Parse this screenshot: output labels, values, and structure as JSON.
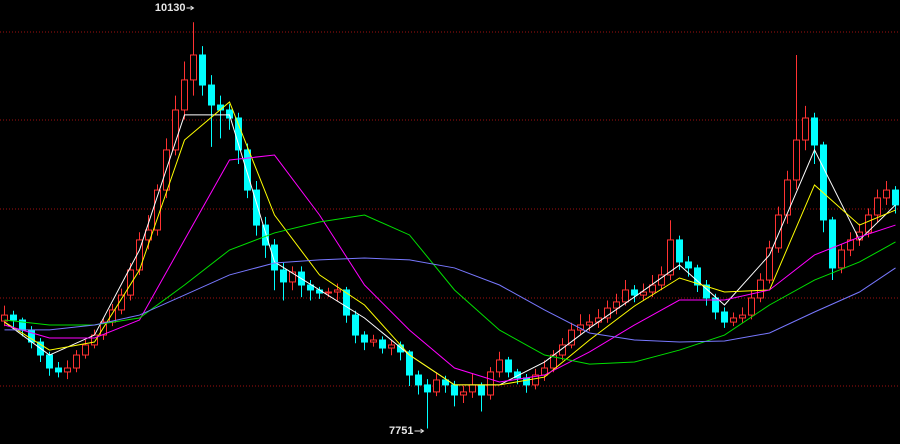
{
  "chart_data": {
    "type": "candlestick",
    "ylim": [
      7660,
      10260
    ],
    "up_color": "#ff3232",
    "down_color": "#00ffff",
    "ohlc": [
      [
        8380,
        8470,
        8350,
        8415
      ],
      [
        8415,
        8440,
        8340,
        8386
      ],
      [
        8386,
        8400,
        8290,
        8327
      ],
      [
        8327,
        8350,
        8220,
        8257
      ],
      [
        8257,
        8280,
        8140,
        8181
      ],
      [
        8181,
        8200,
        8060,
        8105
      ],
      [
        8105,
        8140,
        8050,
        8082
      ],
      [
        8082,
        8150,
        8040,
        8105
      ],
      [
        8105,
        8210,
        8080,
        8181
      ],
      [
        8181,
        8270,
        8160,
        8240
      ],
      [
        8240,
        8330,
        8220,
        8298
      ],
      [
        8298,
        8400,
        8270,
        8374
      ],
      [
        8374,
        8480,
        8350,
        8445
      ],
      [
        8445,
        8570,
        8420,
        8532
      ],
      [
        8532,
        8720,
        8500,
        8679
      ],
      [
        8679,
        8900,
        8650,
        8855
      ],
      [
        8855,
        9000,
        8800,
        8913
      ],
      [
        8913,
        9180,
        8880,
        9147
      ],
      [
        9147,
        9450,
        9100,
        9382
      ],
      [
        9382,
        9700,
        9350,
        9616
      ],
      [
        9616,
        9900,
        9560,
        9792
      ],
      [
        9792,
        10130,
        9700,
        9938
      ],
      [
        9938,
        9990,
        9700,
        9762
      ],
      [
        9762,
        9820,
        9400,
        9645
      ],
      [
        9645,
        9700,
        9450,
        9616
      ],
      [
        9616,
        9650,
        9500,
        9569
      ],
      [
        9569,
        9600,
        9300,
        9382
      ],
      [
        9382,
        9420,
        9100,
        9147
      ],
      [
        9147,
        9200,
        8880,
        8942
      ],
      [
        8942,
        8990,
        8750,
        8825
      ],
      [
        8825,
        8860,
        8560,
        8679
      ],
      [
        8679,
        8720,
        8500,
        8609
      ],
      [
        8609,
        8700,
        8560,
        8667
      ],
      [
        8667,
        8700,
        8520,
        8591
      ],
      [
        8591,
        8620,
        8500,
        8562
      ],
      [
        8562,
        8580,
        8510,
        8544
      ],
      [
        8544,
        8575,
        8520,
        8550
      ],
      [
        8550,
        8600,
        8500,
        8562
      ],
      [
        8562,
        8580,
        8370,
        8415
      ],
      [
        8415,
        8440,
        8250,
        8298
      ],
      [
        8298,
        8320,
        8210,
        8257
      ],
      [
        8257,
        8300,
        8230,
        8269
      ],
      [
        8269,
        8290,
        8190,
        8222
      ],
      [
        8222,
        8270,
        8180,
        8240
      ],
      [
        8240,
        8260,
        8150,
        8199
      ],
      [
        8199,
        8210,
        8000,
        8064
      ],
      [
        8064,
        8090,
        7950,
        8006
      ],
      [
        8006,
        8040,
        7751,
        7965
      ],
      [
        7965,
        8080,
        7940,
        8035
      ],
      [
        8035,
        8060,
        7960,
        8006
      ],
      [
        8006,
        8030,
        7880,
        7947
      ],
      [
        7947,
        8000,
        7900,
        7965
      ],
      [
        7965,
        8070,
        7930,
        8006
      ],
      [
        8006,
        8020,
        7850,
        7947
      ],
      [
        7947,
        8110,
        7920,
        8082
      ],
      [
        8082,
        8200,
        8050,
        8152
      ],
      [
        8152,
        8170,
        8050,
        8082
      ],
      [
        8082,
        8100,
        8010,
        8047
      ],
      [
        8047,
        8070,
        7960,
        8006
      ],
      [
        8006,
        8100,
        7980,
        8064
      ],
      [
        8064,
        8150,
        8030,
        8105
      ],
      [
        8105,
        8210,
        8080,
        8181
      ],
      [
        8181,
        8280,
        8150,
        8240
      ],
      [
        8240,
        8370,
        8220,
        8327
      ],
      [
        8327,
        8420,
        8300,
        8357
      ],
      [
        8357,
        8420,
        8320,
        8374
      ],
      [
        8374,
        8450,
        8340,
        8398
      ],
      [
        8398,
        8500,
        8370,
        8456
      ],
      [
        8456,
        8540,
        8420,
        8492
      ],
      [
        8492,
        8620,
        8470,
        8562
      ],
      [
        8562,
        8590,
        8490,
        8532
      ],
      [
        8532,
        8600,
        8500,
        8550
      ],
      [
        8550,
        8650,
        8520,
        8591
      ],
      [
        8591,
        8700,
        8560,
        8650
      ],
      [
        8650,
        8970,
        8620,
        8855
      ],
      [
        8855,
        8880,
        8680,
        8726
      ],
      [
        8726,
        8760,
        8640,
        8691
      ],
      [
        8691,
        8710,
        8550,
        8591
      ],
      [
        8591,
        8620,
        8470,
        8515
      ],
      [
        8515,
        8540,
        8390,
        8433
      ],
      [
        8433,
        8460,
        8340,
        8374
      ],
      [
        8374,
        8430,
        8350,
        8398
      ],
      [
        8398,
        8460,
        8370,
        8415
      ],
      [
        8415,
        8560,
        8390,
        8515
      ],
      [
        8515,
        8660,
        8490,
        8620
      ],
      [
        8620,
        8850,
        8600,
        8808
      ],
      [
        8808,
        9050,
        8780,
        9001
      ],
      [
        9001,
        9260,
        8950,
        9206
      ],
      [
        9206,
        9938,
        9150,
        9440
      ],
      [
        9440,
        9640,
        9380,
        9569
      ],
      [
        9569,
        9600,
        9300,
        9411
      ],
      [
        9411,
        9430,
        8900,
        8972
      ],
      [
        8972,
        8990,
        8620,
        8691
      ],
      [
        8691,
        8830,
        8660,
        8796
      ],
      [
        8796,
        8900,
        8760,
        8855
      ],
      [
        8855,
        8950,
        8820,
        8901
      ],
      [
        8901,
        9040,
        8870,
        9001
      ],
      [
        9001,
        9150,
        8960,
        9101
      ],
      [
        9101,
        9200,
        9060,
        9147
      ],
      [
        9147,
        9170,
        9010,
        9060
      ]
    ],
    "series_x": [
      0,
      5,
      10,
      15,
      20,
      25,
      30,
      35,
      40,
      45,
      50,
      55,
      60,
      65,
      70,
      75,
      80,
      85,
      90,
      95,
      99
    ],
    "series": [
      {
        "color": "#ffffff",
        "values": [
          8374,
          8181,
          8298,
          8796,
          9587,
          9587,
          8726,
          8562,
          8398,
          8181,
          8006,
          8006,
          8140,
          8339,
          8521,
          8708,
          8474,
          8767,
          9382,
          8855,
          9060
        ]
      },
      {
        "color": "#ffff00",
        "values": [
          8374,
          8210,
          8257,
          8679,
          9440,
          9663,
          9001,
          8650,
          8474,
          8181,
          8006,
          8006,
          8052,
          8269,
          8468,
          8632,
          8550,
          8562,
          9177,
          8942,
          9030
        ]
      },
      {
        "color": "#ff00ff",
        "values": [
          8357,
          8281,
          8281,
          8386,
          8855,
          9323,
          9352,
          9001,
          8591,
          8327,
          8105,
          8023,
          8064,
          8199,
          8357,
          8503,
          8503,
          8562,
          8767,
          8872,
          8942
        ]
      },
      {
        "color": "#00e000",
        "values": [
          8386,
          8357,
          8357,
          8398,
          8591,
          8796,
          8896,
          8960,
          9001,
          8884,
          8562,
          8327,
          8181,
          8128,
          8140,
          8210,
          8298,
          8474,
          8620,
          8726,
          8843
        ]
      },
      {
        "color": "#7878ff",
        "values": [
          8328,
          8328,
          8357,
          8415,
          8532,
          8650,
          8720,
          8738,
          8749,
          8738,
          8691,
          8591,
          8445,
          8310,
          8269,
          8257,
          8263,
          8310,
          8433,
          8550,
          8691
        ]
      }
    ]
  }
}
